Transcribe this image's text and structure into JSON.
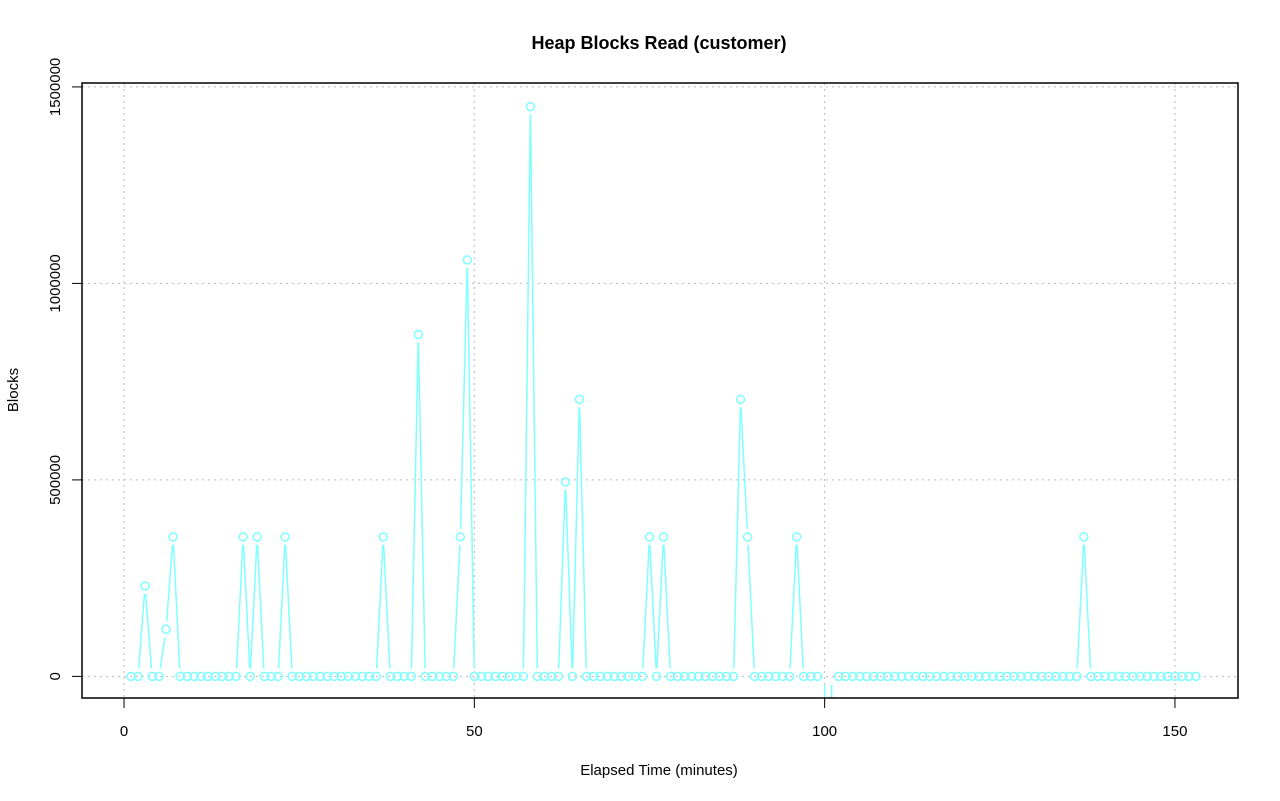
{
  "chart_data": {
    "type": "line",
    "title": "Heap Blocks Read (customer)",
    "xlabel": "Elapsed Time (minutes)",
    "ylabel": "Blocks",
    "xlim": [
      -6,
      159
    ],
    "ylim": [
      -55000,
      1510000
    ],
    "x_ticks": [
      0,
      50,
      100,
      150
    ],
    "y_ticks": [
      0,
      500000,
      1000000,
      1500000
    ],
    "x_tick_labels": [
      "0",
      "50",
      "100",
      "150"
    ],
    "y_tick_labels": [
      "0",
      "500000",
      "1000000",
      "1500000"
    ],
    "grid": true,
    "series_color": "#7fffff",
    "peaks": {
      "3": 230000,
      "6": 120000,
      "7": 355000,
      "17": 355000,
      "19": 355000,
      "23": 355000,
      "37": 355000,
      "42": 870000,
      "48": 355000,
      "49": 1060000,
      "58": 1450000,
      "63": 495000,
      "65": 705000,
      "75": 355000,
      "77": 355000,
      "88": 705000,
      "89": 355000,
      "96": 355000,
      "137": 355000
    },
    "gaps": [
      100,
      101
    ],
    "x_start": 1,
    "x_end": 153
  }
}
